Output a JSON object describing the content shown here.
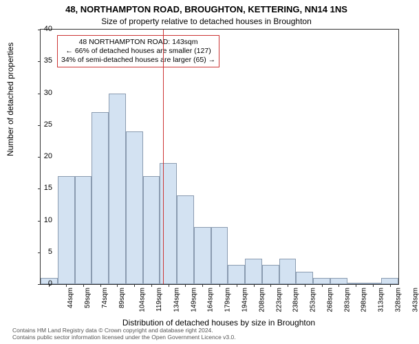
{
  "title_main": "48, NORTHAMPTON ROAD, BROUGHTON, KETTERING, NN14 1NS",
  "title_sub": "Size of property relative to detached houses in Broughton",
  "ylabel": "Number of detached properties",
  "xlabel": "Distribution of detached houses by size in Broughton",
  "chart": {
    "type": "histogram",
    "categories": [
      "44sqm",
      "59sqm",
      "74sqm",
      "89sqm",
      "104sqm",
      "119sqm",
      "134sqm",
      "149sqm",
      "164sqm",
      "179sqm",
      "194sqm",
      "208sqm",
      "223sqm",
      "238sqm",
      "253sqm",
      "268sqm",
      "283sqm",
      "298sqm",
      "313sqm",
      "328sqm",
      "343sqm"
    ],
    "values": [
      1,
      17,
      17,
      27,
      30,
      24,
      17,
      19,
      14,
      9,
      9,
      3,
      4,
      3,
      4,
      2,
      1,
      1,
      0,
      0,
      1
    ],
    "ylim": [
      0,
      40
    ],
    "ytick_step": 5,
    "bar_fill": "#d3e2f2",
    "bar_border": "#8a9bb0",
    "background_color": "#ffffff",
    "axis_color": "#333333",
    "refline_x_index": 6.7,
    "refline_color": "#cc3333"
  },
  "annotation": {
    "line1": "48 NORTHAMPTON ROAD: 143sqm",
    "line2": "← 66% of detached houses are smaller (127)",
    "line3": "34% of semi-detached houses are larger (65) →",
    "border_color": "#cc3333"
  },
  "footer": {
    "line1": "Contains HM Land Registry data © Crown copyright and database right 2024.",
    "line2": "Contains public sector information licensed under the Open Government Licence v3.0."
  }
}
